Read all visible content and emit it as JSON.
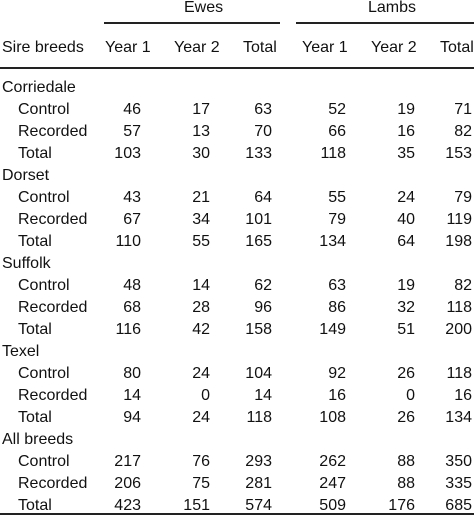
{
  "table": {
    "group_headers": [
      "Ewes",
      "Lambs"
    ],
    "row_header_label": "Sire breeds",
    "column_headers": [
      "Year 1",
      "Year 2",
      "Total",
      "Year 1",
      "Year 2",
      "Total"
    ],
    "sections": [
      {
        "breed": "Corriedale",
        "rows": [
          {
            "label": "Control",
            "values": [
              "46",
              "17",
              "63",
              "52",
              "19",
              "71"
            ]
          },
          {
            "label": "Recorded",
            "values": [
              "57",
              "13",
              "70",
              "66",
              "16",
              "82"
            ]
          },
          {
            "label": "Total",
            "values": [
              "103",
              "30",
              "133",
              "118",
              "35",
              "153"
            ]
          }
        ]
      },
      {
        "breed": "Dorset",
        "rows": [
          {
            "label": "Control",
            "values": [
              "43",
              "21",
              "64",
              "55",
              "24",
              "79"
            ]
          },
          {
            "label": "Recorded",
            "values": [
              "67",
              "34",
              "101",
              "79",
              "40",
              "119"
            ]
          },
          {
            "label": "Total",
            "values": [
              "110",
              "55",
              "165",
              "134",
              "64",
              "198"
            ]
          }
        ]
      },
      {
        "breed": "Suffolk",
        "rows": [
          {
            "label": "Control",
            "values": [
              "48",
              "14",
              "62",
              "63",
              "19",
              "82"
            ]
          },
          {
            "label": "Recorded",
            "values": [
              "68",
              "28",
              "96",
              "86",
              "32",
              "118"
            ]
          },
          {
            "label": "Total",
            "values": [
              "116",
              "42",
              "158",
              "149",
              "51",
              "200"
            ]
          }
        ]
      },
      {
        "breed": "Texel",
        "rows": [
          {
            "label": "Control",
            "values": [
              "80",
              "24",
              "104",
              "92",
              "26",
              "118"
            ]
          },
          {
            "label": "Recorded",
            "values": [
              "14",
              "0",
              "14",
              "16",
              "0",
              "16"
            ]
          },
          {
            "label": "Total",
            "values": [
              "94",
              "24",
              "118",
              "108",
              "26",
              "134"
            ]
          }
        ]
      },
      {
        "breed": "All breeds",
        "rows": [
          {
            "label": "Control",
            "values": [
              "217",
              "76",
              "293",
              "262",
              "88",
              "350"
            ]
          },
          {
            "label": "Recorded",
            "values": [
              "206",
              "75",
              "281",
              "247",
              "88",
              "335"
            ]
          },
          {
            "label": "Total",
            "values": [
              "423",
              "151",
              "574",
              "509",
              "176",
              "685"
            ]
          }
        ]
      }
    ]
  }
}
